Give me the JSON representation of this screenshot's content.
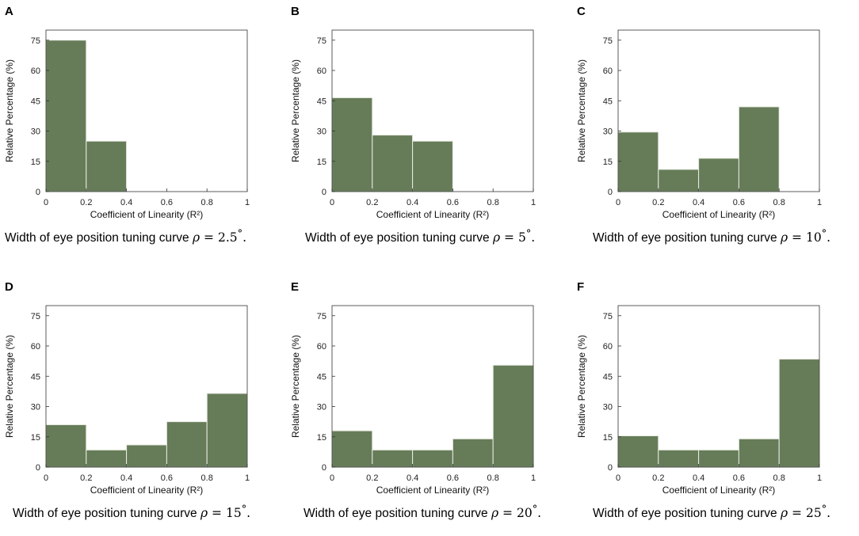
{
  "figure": {
    "theme": {
      "bar_fill": "#667c58",
      "bar_edge": "#e8ece4",
      "axis_color": "#333333"
    },
    "caption_text": "Width of eye position tuning curve",
    "caption_symbol": "ρ",
    "caption_equals": "=",
    "caption_degree": "°",
    "caption_period": "."
  },
  "chart_data": [
    {
      "panel": "A",
      "type": "bar",
      "rho": "2.5",
      "bins": [
        "0-0.2",
        "0.2-0.4",
        "0.4-0.6",
        "0.6-0.8",
        "0.8-1"
      ],
      "values": [
        75,
        25,
        0,
        0,
        0
      ],
      "xticks": [
        "0",
        "0.2",
        "0.4",
        "0.6",
        "0.8",
        "1"
      ],
      "yticks": [
        "0",
        "15",
        "30",
        "45",
        "60",
        "75"
      ],
      "xlabel": "Coefficient of Linearity (R²)",
      "ylabel": "Relative Percentage (%)",
      "xlim": [
        0,
        1
      ],
      "ylim": [
        0,
        80
      ]
    },
    {
      "panel": "B",
      "type": "bar",
      "rho": "5",
      "bins": [
        "0-0.2",
        "0.2-0.4",
        "0.4-0.6",
        "0.6-0.8",
        "0.8-1"
      ],
      "values": [
        46.5,
        28,
        25,
        0,
        0
      ],
      "xticks": [
        "0",
        "0.2",
        "0.4",
        "0.6",
        "0.8",
        "1"
      ],
      "yticks": [
        "0",
        "15",
        "30",
        "45",
        "60",
        "75"
      ],
      "xlabel": "Coefficient of Linearity (R²)",
      "ylabel": "Relative Percentage (%)",
      "xlim": [
        0,
        1
      ],
      "ylim": [
        0,
        80
      ]
    },
    {
      "panel": "C",
      "type": "bar",
      "rho": "10",
      "bins": [
        "0-0.2",
        "0.2-0.4",
        "0.4-0.6",
        "0.6-0.8",
        "0.8-1"
      ],
      "values": [
        29.5,
        11,
        16.5,
        42,
        0
      ],
      "xticks": [
        "0",
        "0.2",
        "0.4",
        "0.6",
        "0.8",
        "1"
      ],
      "yticks": [
        "0",
        "15",
        "30",
        "45",
        "60",
        "75"
      ],
      "xlabel": "Coefficient of Linearity (R²)",
      "ylabel": "Relative Percentage (%)",
      "xlim": [
        0,
        1
      ],
      "ylim": [
        0,
        80
      ]
    },
    {
      "panel": "D",
      "type": "bar",
      "rho": "15",
      "bins": [
        "0-0.2",
        "0.2-0.4",
        "0.4-0.6",
        "0.6-0.8",
        "0.8-1"
      ],
      "values": [
        21,
        8.5,
        11,
        22.5,
        36.5
      ],
      "xticks": [
        "0",
        "0.2",
        "0.4",
        "0.6",
        "0.8",
        "1"
      ],
      "yticks": [
        "0",
        "15",
        "30",
        "45",
        "60",
        "75"
      ],
      "xlabel": "Coefficient of Linearity (R²)",
      "ylabel": "Relative Percentage (%)",
      "xlim": [
        0,
        1
      ],
      "ylim": [
        0,
        80
      ]
    },
    {
      "panel": "E",
      "type": "bar",
      "rho": "20",
      "bins": [
        "0-0.2",
        "0.2-0.4",
        "0.4-0.6",
        "0.6-0.8",
        "0.8-1"
      ],
      "values": [
        18,
        8.5,
        8.5,
        14,
        50.5
      ],
      "xticks": [
        "0",
        "0.2",
        "0.4",
        "0.6",
        "0.8",
        "1"
      ],
      "yticks": [
        "0",
        "15",
        "30",
        "45",
        "60",
        "75"
      ],
      "xlabel": "Coefficient of Linearity (R²)",
      "ylabel": "Relative Percentage (%)",
      "xlim": [
        0,
        1
      ],
      "ylim": [
        0,
        80
      ]
    },
    {
      "panel": "F",
      "type": "bar",
      "rho": "25",
      "bins": [
        "0-0.2",
        "0.2-0.4",
        "0.4-0.6",
        "0.6-0.8",
        "0.8-1"
      ],
      "values": [
        15.5,
        8.5,
        8.5,
        14,
        53.5
      ],
      "xticks": [
        "0",
        "0.2",
        "0.4",
        "0.6",
        "0.8",
        "1"
      ],
      "yticks": [
        "0",
        "15",
        "30",
        "45",
        "60",
        "75"
      ],
      "xlabel": "Coefficient of Linearity (R²)",
      "ylabel": "Relative Percentage (%)",
      "xlim": [
        0,
        1
      ],
      "ylim": [
        0,
        80
      ]
    }
  ]
}
